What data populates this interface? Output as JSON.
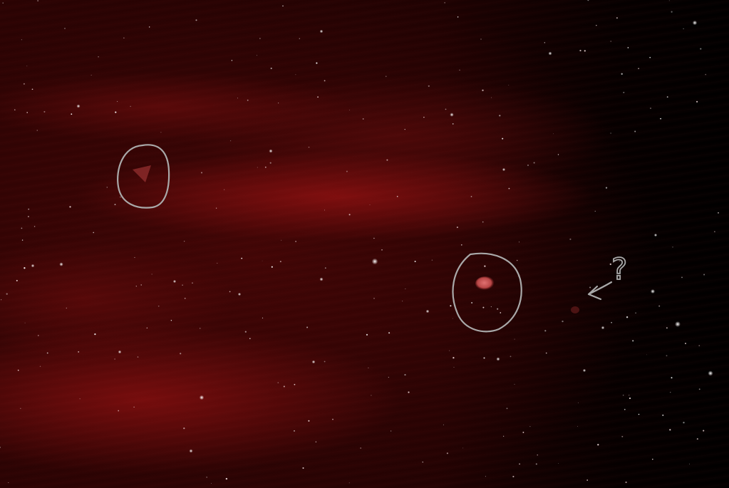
{
  "image": {
    "subject": "night-sky-photograph",
    "background_colors": {
      "glow": "#8a1010",
      "deep": "#2a0303",
      "sky_black": "#000000"
    }
  },
  "objects": [
    {
      "name": "triangular-object",
      "color": "#8a2a2a"
    },
    {
      "name": "oval-object",
      "color": "#c85050"
    },
    {
      "name": "faint-object",
      "color": "#5a1818"
    }
  ],
  "annotations": {
    "stroke_color": "#a9a9a9",
    "question_mark": "?"
  }
}
